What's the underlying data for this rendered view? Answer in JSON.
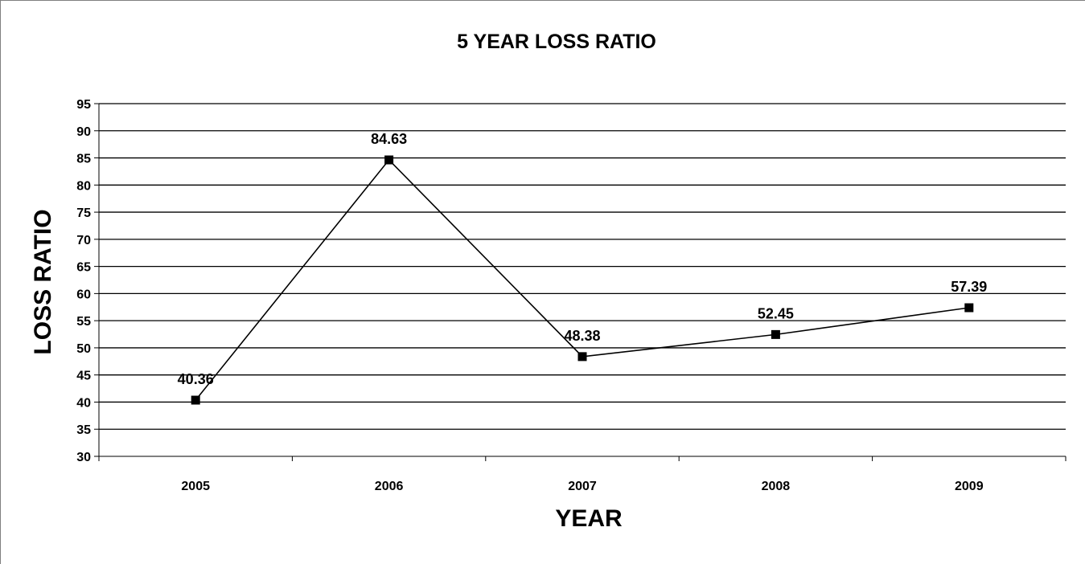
{
  "chart_data": {
    "type": "line",
    "title": "5 YEAR LOSS RATIO",
    "xlabel": "YEAR",
    "ylabel": "LOSS RATIO",
    "categories": [
      "2005",
      "2006",
      "2007",
      "2008",
      "2009"
    ],
    "series": [
      {
        "values": [
          40.36,
          84.63,
          48.38,
          52.45,
          57.39
        ]
      }
    ],
    "data_labels": [
      "40.36",
      "84.63",
      "48.38",
      "52.45",
      "57.39"
    ],
    "ylim": [
      30,
      95
    ],
    "y_ticks": [
      "30",
      "35",
      "40",
      "45",
      "50",
      "55",
      "60",
      "65",
      "70",
      "75",
      "80",
      "85",
      "90",
      "95"
    ],
    "grid": true,
    "legend": "none",
    "colors": {
      "line": "#000000",
      "marker": "#000000",
      "grid": "#000000"
    }
  }
}
